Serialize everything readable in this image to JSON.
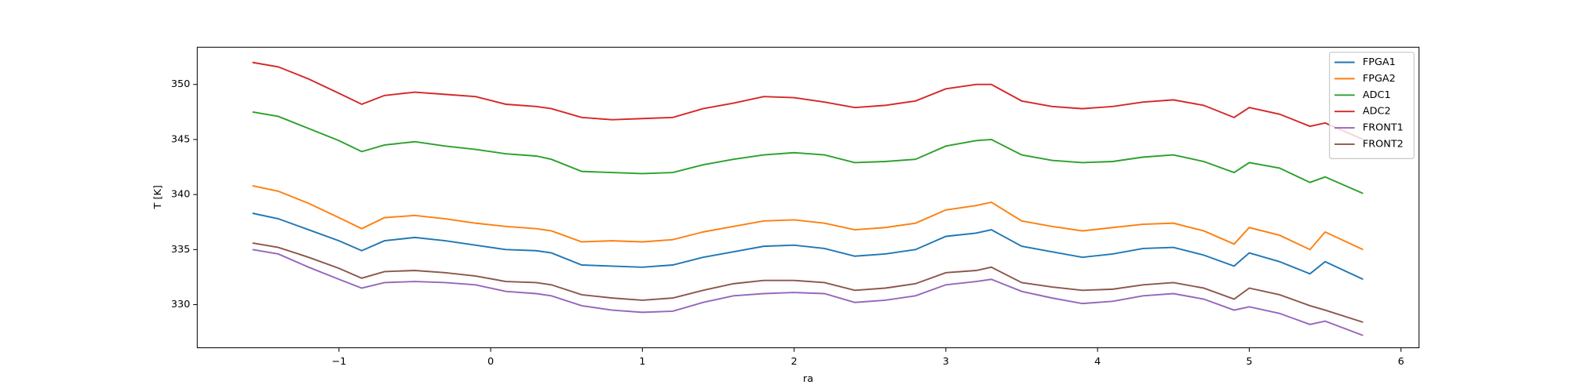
{
  "chart_data": {
    "type": "line",
    "xlabel": "ra",
    "ylabel": "T [K]",
    "x": [
      -1.57,
      -1.4,
      -1.2,
      -1.0,
      -0.85,
      -0.7,
      -0.5,
      -0.3,
      -0.1,
      0.1,
      0.3,
      0.4,
      0.6,
      0.8,
      1.0,
      1.2,
      1.4,
      1.6,
      1.8,
      2.0,
      2.2,
      2.4,
      2.6,
      2.8,
      3.0,
      3.2,
      3.3,
      3.5,
      3.7,
      3.9,
      4.1,
      4.3,
      4.5,
      4.7,
      4.9,
      5.0,
      5.2,
      5.4,
      5.5,
      5.75
    ],
    "series": [
      {
        "name": "FPGA1",
        "color": "#1f77b4",
        "values": [
          338.3,
          337.8,
          336.8,
          335.8,
          334.9,
          335.8,
          336.1,
          335.8,
          335.4,
          335.0,
          334.9,
          334.7,
          333.6,
          333.5,
          333.4,
          333.6,
          334.3,
          334.8,
          335.3,
          335.4,
          335.1,
          334.4,
          334.6,
          335.0,
          336.2,
          336.5,
          336.8,
          335.3,
          334.8,
          334.3,
          334.6,
          335.1,
          335.2,
          334.5,
          333.5,
          334.7,
          333.9,
          332.8,
          333.9,
          332.3
        ]
      },
      {
        "name": "FPGA2",
        "color": "#ff7f0e",
        "values": [
          340.8,
          340.3,
          339.2,
          337.9,
          336.9,
          337.9,
          338.1,
          337.8,
          337.4,
          337.1,
          336.9,
          336.7,
          335.7,
          335.8,
          335.7,
          335.9,
          336.6,
          337.1,
          337.6,
          337.7,
          337.4,
          336.8,
          337.0,
          337.4,
          338.6,
          339.0,
          339.3,
          337.6,
          337.1,
          336.7,
          337.0,
          337.3,
          337.4,
          336.7,
          335.5,
          337.0,
          336.3,
          335.0,
          336.6,
          335.0
        ]
      },
      {
        "name": "ADC1",
        "color": "#2ca02c",
        "values": [
          347.5,
          347.1,
          346.0,
          344.9,
          343.9,
          344.5,
          344.8,
          344.4,
          344.1,
          343.7,
          343.5,
          343.2,
          342.1,
          342.0,
          341.9,
          342.0,
          342.7,
          343.2,
          343.6,
          343.8,
          343.6,
          342.9,
          343.0,
          343.2,
          344.4,
          344.9,
          345.0,
          343.6,
          343.1,
          342.9,
          343.0,
          343.4,
          343.6,
          343.0,
          342.0,
          342.9,
          342.4,
          341.1,
          341.6,
          340.1
        ]
      },
      {
        "name": "ADC2",
        "color": "#d62728",
        "values": [
          352.0,
          351.6,
          350.5,
          349.2,
          348.2,
          349.0,
          349.3,
          349.1,
          348.9,
          348.2,
          348.0,
          347.8,
          347.0,
          346.8,
          346.9,
          347.0,
          347.8,
          348.3,
          348.9,
          348.8,
          348.4,
          347.9,
          348.1,
          348.5,
          349.6,
          350.0,
          350.0,
          348.5,
          348.0,
          347.8,
          348.0,
          348.4,
          348.6,
          348.1,
          347.0,
          347.9,
          347.3,
          346.2,
          346.5,
          345.0
        ]
      },
      {
        "name": "FRONT1",
        "color": "#9467bd",
        "values": [
          335.0,
          334.6,
          333.4,
          332.3,
          331.5,
          332.0,
          332.1,
          332.0,
          331.8,
          331.2,
          331.0,
          330.8,
          329.9,
          329.5,
          329.3,
          329.4,
          330.2,
          330.8,
          331.0,
          331.1,
          331.0,
          330.2,
          330.4,
          330.8,
          331.8,
          332.1,
          332.3,
          331.2,
          330.6,
          330.1,
          330.3,
          330.8,
          331.0,
          330.5,
          329.5,
          329.8,
          329.2,
          328.2,
          328.5,
          327.2
        ]
      },
      {
        "name": "FRONT2",
        "color": "#8c564b",
        "values": [
          335.6,
          335.2,
          334.3,
          333.3,
          332.4,
          333.0,
          333.1,
          332.9,
          332.6,
          332.1,
          332.0,
          331.8,
          330.9,
          330.6,
          330.4,
          330.6,
          331.3,
          331.9,
          332.2,
          332.2,
          332.0,
          331.3,
          331.5,
          331.9,
          332.9,
          333.1,
          333.4,
          332.0,
          331.6,
          331.3,
          331.4,
          331.8,
          332.0,
          331.5,
          330.5,
          331.5,
          330.9,
          329.9,
          329.5,
          328.4
        ]
      }
    ],
    "xlim": [
      -1.934,
      6.119
    ],
    "xticks": [
      {
        "value": -1,
        "label": "−1"
      },
      0,
      1,
      2,
      3,
      4,
      5,
      6
    ],
    "ylim": [
      326.08,
      353.38
    ],
    "yticks": [
      330,
      335,
      340,
      345,
      350
    ],
    "legend": "upper right"
  }
}
